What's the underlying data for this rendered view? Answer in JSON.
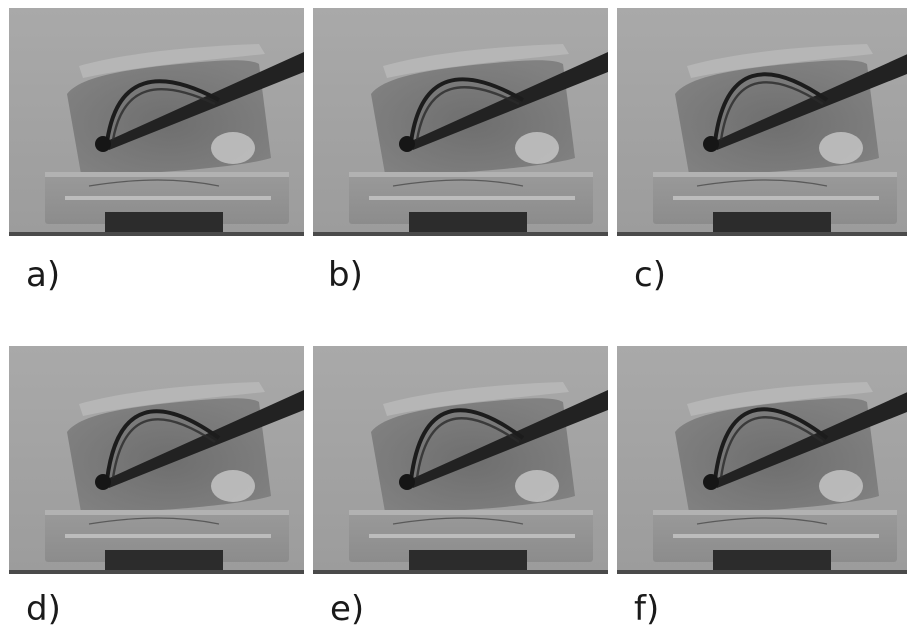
{
  "figure": {
    "panels": [
      {
        "label": "a)",
        "image": "x-ray-frame-a",
        "loop_height": 0.5
      },
      {
        "label": "b)",
        "image": "x-ray-frame-b",
        "loop_height": 0.6
      },
      {
        "label": "c)",
        "image": "x-ray-frame-c",
        "loop_height": 0.85
      },
      {
        "label": "d)",
        "image": "x-ray-frame-d",
        "loop_height": 0.9
      },
      {
        "label": "e)",
        "image": "x-ray-frame-e",
        "loop_height": 0.95
      },
      {
        "label": "f)",
        "image": "x-ray-frame-f",
        "loop_height": 1.0
      }
    ]
  }
}
